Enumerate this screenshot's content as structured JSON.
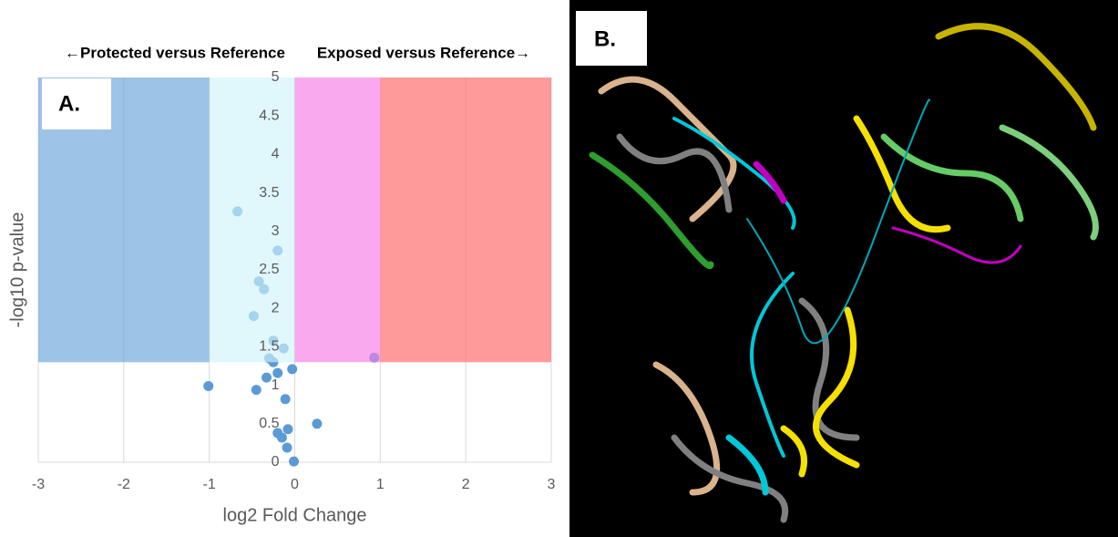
{
  "chart_data": {
    "type": "scatter",
    "panel_label": "A.",
    "left_annotation": "←Protected versus Reference",
    "right_annotation": "Exposed versus Reference→",
    "x_label": "log2 Fold Change",
    "y_label": "-log10 p-value",
    "xlim": [
      -3,
      3
    ],
    "ylim": [
      0,
      5
    ],
    "xticks": [
      -3,
      -2,
      -1,
      0,
      1,
      2,
      3
    ],
    "yticks": [
      0,
      0.5,
      1,
      1.5,
      2,
      2.5,
      3,
      3.5,
      4,
      4.5,
      5
    ],
    "grid": true,
    "color": "#5b9bd5",
    "x": [
      -0.67,
      -0.2,
      -0.42,
      -0.36,
      -0.48,
      -0.25,
      -0.13,
      -0.3,
      -0.25,
      0.93,
      -0.03,
      -0.2,
      -0.33,
      -1.01,
      -0.45,
      -0.11,
      0.26,
      -0.08,
      -0.2,
      -0.15,
      -0.09,
      -0.01
    ],
    "values": [
      3.26,
      2.75,
      2.35,
      2.25,
      1.9,
      1.58,
      1.48,
      1.35,
      1.3,
      1.36,
      1.21,
      1.16,
      1.1,
      0.99,
      0.94,
      0.82,
      0.5,
      0.43,
      0.38,
      0.32,
      0.19,
      0.01
    ],
    "regions": [
      {
        "xlim": [
          -3,
          -1
        ],
        "ylim": [
          1.3,
          5
        ],
        "color": "#69a3d9"
      },
      {
        "xlim": [
          -1,
          0
        ],
        "ylim": [
          1.3,
          5
        ],
        "color": "#d0f3f9"
      },
      {
        "xlim": [
          0,
          1
        ],
        "ylim": [
          1.3,
          5
        ],
        "color": "#f67de7"
      },
      {
        "xlim": [
          1,
          3
        ],
        "ylim": [
          1.3,
          5
        ],
        "color": "#ff6464"
      }
    ]
  },
  "image_panel": {
    "label": "B."
  }
}
